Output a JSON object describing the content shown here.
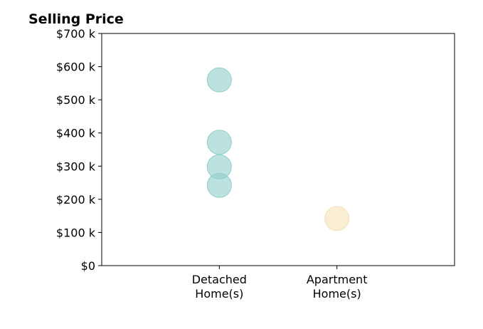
{
  "chart_data": {
    "type": "scatter",
    "title": "Selling Price",
    "xlabel": "",
    "ylabel": "",
    "categories": [
      "Detached\nHome(s)",
      "Apartment\nHome(s)"
    ],
    "x_range": [
      0,
      3
    ],
    "ylim": [
      0,
      700000
    ],
    "yticks": [
      {
        "value": 0,
        "label": "$0"
      },
      {
        "value": 100000,
        "label": "$100 k"
      },
      {
        "value": 200000,
        "label": "$200 k"
      },
      {
        "value": 300000,
        "label": "$300 k"
      },
      {
        "value": 400000,
        "label": "$400 k"
      },
      {
        "value": 500000,
        "label": "$500 k"
      },
      {
        "value": 600000,
        "label": "$600 k"
      },
      {
        "value": 700000,
        "label": "$700 k"
      }
    ],
    "grid": false,
    "series": [
      {
        "category": "Detached\nHome(s)",
        "color": "#8fcfc9",
        "values": [
          560000,
          372000,
          298000,
          242000
        ]
      },
      {
        "category": "Apartment\nHome(s)",
        "color": "#f5e1b5",
        "values": [
          142000
        ]
      }
    ]
  }
}
